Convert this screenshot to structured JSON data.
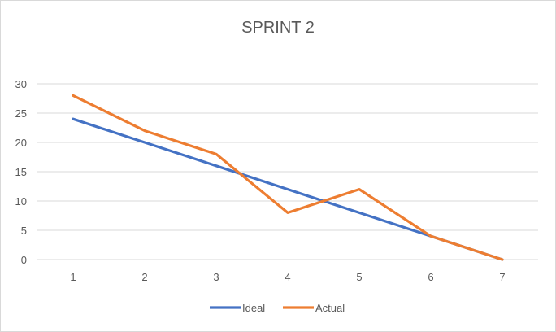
{
  "chart_data": {
    "type": "line",
    "title": "SPRINT 2",
    "xlabel": "",
    "ylabel": "",
    "categories": [
      "1",
      "2",
      "3",
      "4",
      "5",
      "6",
      "7"
    ],
    "ylim": [
      0,
      30
    ],
    "yticks": [
      "0",
      "5",
      "10",
      "15",
      "20",
      "25",
      "30"
    ],
    "grid": true,
    "legend_position": "bottom",
    "series": [
      {
        "name": "Ideal",
        "color": "#4472C4",
        "values": [
          24,
          20,
          16,
          12,
          8,
          4,
          0
        ]
      },
      {
        "name": "Actual",
        "color": "#ED7D31",
        "values": [
          28,
          22,
          18,
          8,
          12,
          4,
          0
        ]
      }
    ]
  }
}
